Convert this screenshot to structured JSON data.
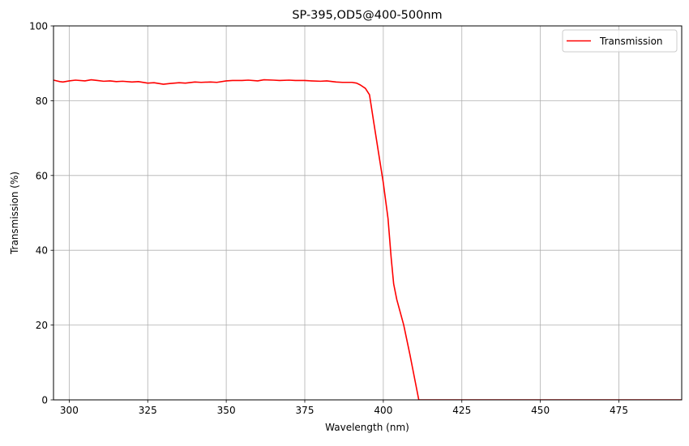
{
  "chart_data": {
    "type": "line",
    "title": "SP-395,OD5@400-500nm",
    "xlabel": "Wavelength (nm)",
    "ylabel": "Transmission (%)",
    "xlim": [
      295,
      495
    ],
    "ylim": [
      0,
      100
    ],
    "xticks": [
      300,
      325,
      350,
      375,
      400,
      425,
      450,
      475
    ],
    "yticks": [
      0,
      20,
      40,
      60,
      80,
      100
    ],
    "grid": true,
    "legend_position": "upper right",
    "series": [
      {
        "name": "Transmission",
        "color": "#ff0000",
        "x": [
          295,
          297,
          298,
          300,
          302,
          305,
          307,
          309,
          311,
          313,
          315,
          317,
          320,
          322,
          325,
          327,
          330,
          332,
          335,
          337,
          340,
          342,
          345,
          347,
          350,
          352,
          355,
          357,
          360,
          362,
          365,
          367,
          370,
          372,
          375,
          377,
          380,
          382,
          385,
          387,
          390,
          391.5,
          392.7,
          394.3,
          395.6,
          397,
          398.5,
          400,
          401.5,
          402.5,
          403.3,
          404.3,
          406.5,
          408.5,
          411.3,
          420,
          440,
          460,
          480,
          495
        ],
        "values": [
          85.5,
          85.1,
          85.0,
          85.3,
          85.5,
          85.3,
          85.6,
          85.4,
          85.2,
          85.3,
          85.1,
          85.2,
          85.0,
          85.1,
          84.7,
          84.8,
          84.4,
          84.6,
          84.8,
          84.7,
          85.0,
          84.9,
          85.0,
          84.9,
          85.3,
          85.4,
          85.4,
          85.5,
          85.3,
          85.6,
          85.5,
          85.4,
          85.5,
          85.4,
          85.4,
          85.3,
          85.2,
          85.3,
          85.0,
          84.9,
          84.9,
          84.7,
          84.2,
          83.3,
          81.6,
          74.0,
          66.0,
          58.0,
          48.5,
          38.0,
          31.0,
          26.8,
          20.0,
          12.0,
          0.0,
          0.0,
          0.0,
          0.0,
          0.0,
          0.0
        ]
      }
    ]
  },
  "legend": {
    "items": [
      {
        "label": "Transmission",
        "color": "#ff0000"
      }
    ]
  }
}
